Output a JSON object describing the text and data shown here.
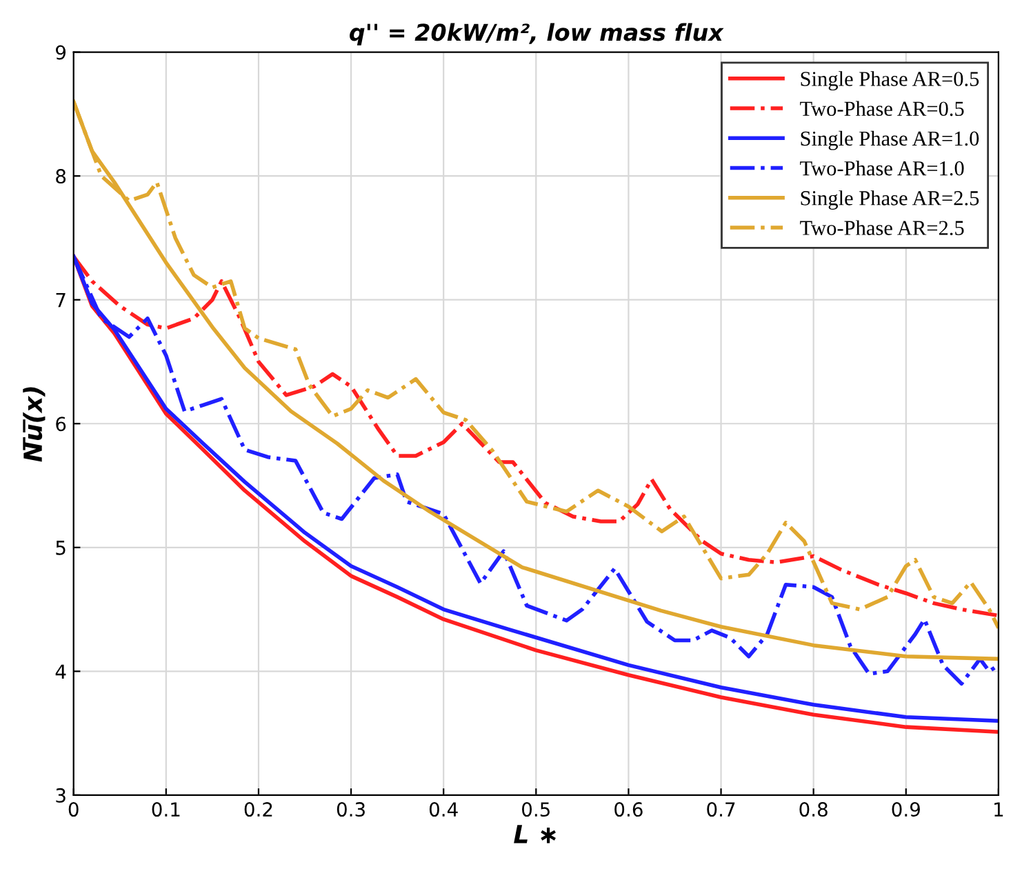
{
  "chart_data": {
    "type": "line",
    "title": "q'' = 20kW/m², low mass flux",
    "xlabel": "L ∗",
    "ylabel": "N̅u̅(x)",
    "xlim": [
      0,
      1
    ],
    "xticks": [
      0,
      0.1,
      0.2,
      0.3,
      0.4,
      0.5,
      0.6,
      0.7,
      0.8,
      0.9,
      1
    ],
    "ylim": [
      3,
      9
    ],
    "yticks": [
      3,
      4,
      5,
      6,
      7,
      8,
      9
    ],
    "grid": true,
    "legend": "top right",
    "series": [
      {
        "name": "Single Phase AR=0.5",
        "color": "#ff2020",
        "line_style": "solid",
        "x": [
          0,
          0.02,
          0.044,
          0.1,
          0.14,
          0.185,
          0.25,
          0.3,
          0.35,
          0.4,
          0.5,
          0.6,
          0.7,
          0.8,
          0.9,
          1
        ],
        "values": [
          7.35,
          6.95,
          6.73,
          6.08,
          5.79,
          5.46,
          5.05,
          4.77,
          4.6,
          4.42,
          4.17,
          3.97,
          3.79,
          3.65,
          3.55,
          3.51
        ]
      },
      {
        "name": "Two-Phase AR=0.5",
        "color": "#ff2020",
        "line_style": "dashdot",
        "x": [
          0,
          0.02,
          0.05,
          0.08,
          0.1,
          0.13,
          0.15,
          0.16,
          0.18,
          0.2,
          0.23,
          0.26,
          0.28,
          0.3,
          0.33,
          0.35,
          0.37,
          0.4,
          0.42,
          0.46,
          0.475,
          0.51,
          0.54,
          0.57,
          0.59,
          0.61,
          0.625,
          0.645,
          0.68,
          0.7,
          0.73,
          0.76,
          0.8,
          0.83,
          0.87,
          0.9,
          0.93,
          0.96,
          1
        ],
        "values": [
          7.35,
          7.15,
          6.95,
          6.8,
          6.77,
          6.85,
          7.0,
          7.15,
          6.85,
          6.5,
          6.23,
          6.3,
          6.4,
          6.3,
          5.95,
          5.74,
          5.74,
          5.85,
          6.0,
          5.69,
          5.69,
          5.36,
          5.25,
          5.21,
          5.21,
          5.35,
          5.55,
          5.31,
          5.05,
          4.95,
          4.9,
          4.88,
          4.93,
          4.82,
          4.7,
          4.63,
          4.55,
          4.5,
          4.45
        ]
      },
      {
        "name": "Single Phase AR=1.0",
        "color": "#2020ff",
        "line_style": "solid",
        "x": [
          0,
          0.02,
          0.044,
          0.1,
          0.14,
          0.185,
          0.25,
          0.3,
          0.35,
          0.4,
          0.47,
          0.6,
          0.7,
          0.8,
          0.9,
          1
        ],
        "values": [
          7.35,
          6.97,
          6.76,
          6.12,
          5.84,
          5.53,
          5.12,
          4.85,
          4.68,
          4.5,
          4.34,
          4.05,
          3.87,
          3.73,
          3.63,
          3.6
        ]
      },
      {
        "name": "Two-Phase AR=1.0",
        "color": "#2020ff",
        "line_style": "dashdot",
        "x": [
          0,
          0.03,
          0.06,
          0.08,
          0.1,
          0.12,
          0.14,
          0.16,
          0.185,
          0.21,
          0.24,
          0.27,
          0.29,
          0.325,
          0.35,
          0.36,
          0.4,
          0.44,
          0.465,
          0.49,
          0.533,
          0.55,
          0.585,
          0.62,
          0.65,
          0.67,
          0.69,
          0.71,
          0.73,
          0.75,
          0.77,
          0.8,
          0.82,
          0.84,
          0.86,
          0.88,
          0.91,
          0.92,
          0.94,
          0.96,
          0.98,
          0.99,
          1
        ],
        "values": [
          7.35,
          6.85,
          6.7,
          6.85,
          6.55,
          6.1,
          6.15,
          6.2,
          5.79,
          5.73,
          5.7,
          5.28,
          5.23,
          5.56,
          5.59,
          5.37,
          5.27,
          4.71,
          4.97,
          4.53,
          4.41,
          4.5,
          4.83,
          4.4,
          4.25,
          4.25,
          4.33,
          4.27,
          4.12,
          4.3,
          4.7,
          4.68,
          4.6,
          4.2,
          3.98,
          4.0,
          4.3,
          4.42,
          4.05,
          3.9,
          4.1,
          4.0,
          4.05
        ]
      },
      {
        "name": "Single Phase AR=2.5",
        "color": "#e0a830",
        "line_style": "solid",
        "x": [
          0,
          0.02,
          0.044,
          0.1,
          0.15,
          0.185,
          0.235,
          0.285,
          0.335,
          0.385,
          0.485,
          0.635,
          0.7,
          0.8,
          0.9,
          1
        ],
        "values": [
          8.6,
          8.2,
          7.95,
          7.3,
          6.78,
          6.45,
          6.1,
          5.84,
          5.54,
          5.29,
          4.84,
          4.49,
          4.36,
          4.21,
          4.12,
          4.1
        ]
      },
      {
        "name": "Two-Phase AR=2.5",
        "color": "#e0a830",
        "line_style": "dashdot",
        "x": [
          0,
          0.03,
          0.06,
          0.08,
          0.09,
          0.11,
          0.13,
          0.15,
          0.17,
          0.185,
          0.2,
          0.24,
          0.255,
          0.28,
          0.3,
          0.318,
          0.34,
          0.37,
          0.4,
          0.424,
          0.453,
          0.49,
          0.533,
          0.567,
          0.6,
          0.636,
          0.66,
          0.68,
          0.7,
          0.73,
          0.75,
          0.77,
          0.79,
          0.82,
          0.85,
          0.88,
          0.9,
          0.91,
          0.93,
          0.95,
          0.97,
          0.99,
          1
        ],
        "values": [
          8.6,
          8.0,
          7.8,
          7.85,
          7.95,
          7.5,
          7.2,
          7.1,
          7.15,
          6.77,
          6.69,
          6.6,
          6.31,
          6.06,
          6.12,
          6.27,
          6.21,
          6.36,
          6.09,
          6.03,
          5.78,
          5.37,
          5.29,
          5.46,
          5.33,
          5.13,
          5.25,
          5.0,
          4.75,
          4.78,
          4.95,
          5.2,
          5.05,
          4.55,
          4.5,
          4.6,
          4.85,
          4.9,
          4.6,
          4.55,
          4.72,
          4.5,
          4.35
        ]
      }
    ]
  }
}
